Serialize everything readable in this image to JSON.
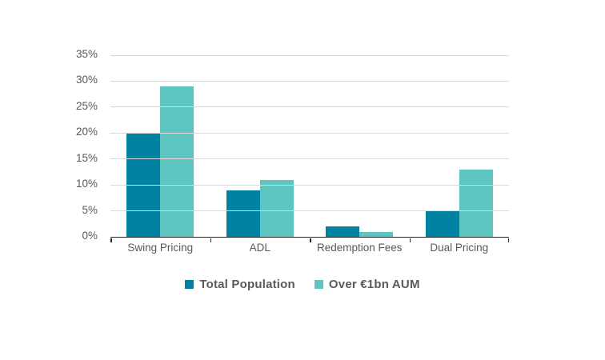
{
  "chart_data": {
    "type": "bar",
    "categories": [
      "Swing Pricing",
      "ADL",
      "Redemption Fees",
      "Dual Pricing"
    ],
    "series": [
      {
        "name": "Total Population",
        "color": "#0082A3",
        "values": [
          20,
          9,
          2,
          5
        ]
      },
      {
        "name": "Over €1bn AUM",
        "color": "#5EC5C0",
        "values": [
          29,
          11,
          1,
          13
        ]
      }
    ],
    "title": "",
    "xlabel": "",
    "ylabel": "",
    "ylim": [
      0,
      35
    ],
    "ytick_step": 5,
    "ytick_labels": [
      "0%",
      "5%",
      "10%",
      "15%",
      "20%",
      "25%",
      "30%",
      "35%"
    ],
    "grid": "horizontal",
    "legend_position": "bottom"
  },
  "colors": {
    "background": "#FFFFFF",
    "gridline": "#D9D9D9",
    "axis": "#262626",
    "text": "#595959"
  }
}
